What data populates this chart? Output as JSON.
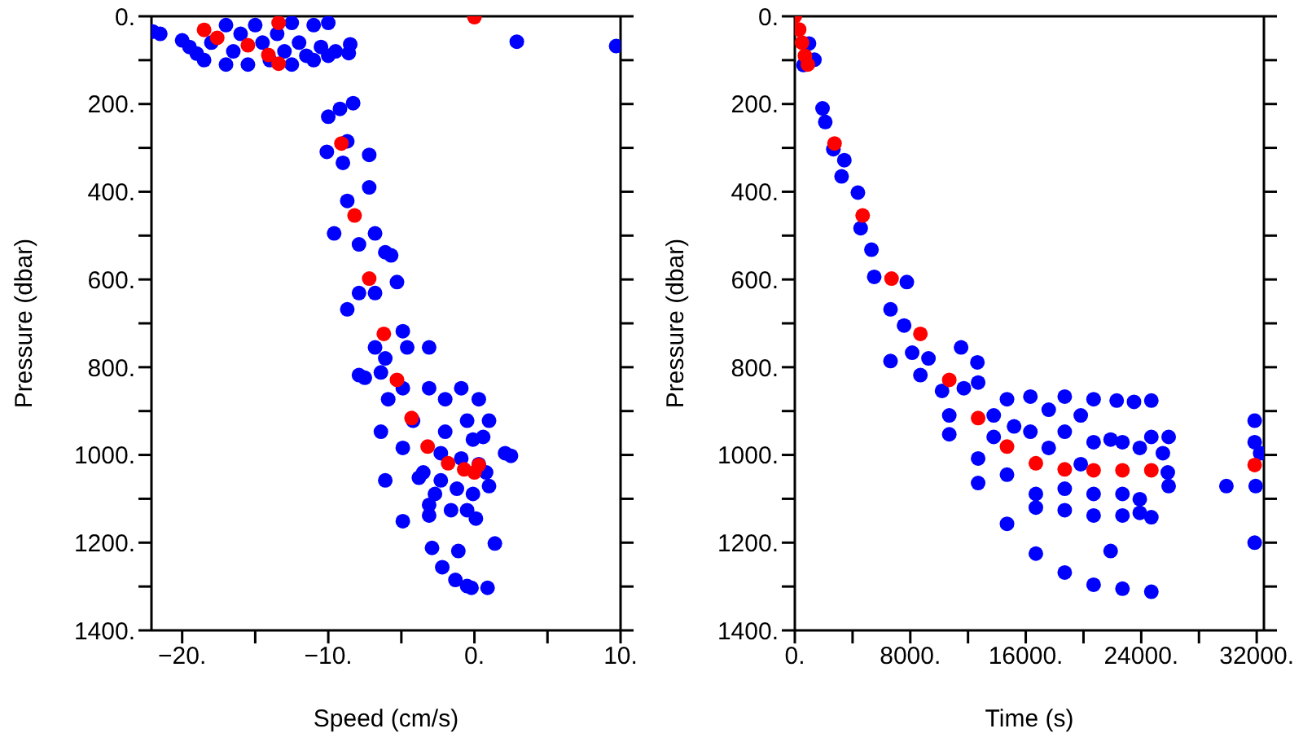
{
  "chart_data": [
    {
      "type": "scatter",
      "xlabel": "Speed (cm/s)",
      "ylabel": "Pressure (dbar)",
      "marker": "circle",
      "xlim": [
        -22.1,
        10
      ],
      "ylim": [
        1400,
        0
      ],
      "xticks": [
        {
          "value": -20,
          "label": "−20."
        },
        {
          "value": -15,
          "label": null
        },
        {
          "value": -10,
          "label": "−10."
        },
        {
          "value": -5,
          "label": null
        },
        {
          "value": 0,
          "label": "0."
        },
        {
          "value": 5,
          "label": null
        },
        {
          "value": 10,
          "label": "10."
        }
      ],
      "yticks": [
        {
          "value": 0,
          "label": "0."
        },
        {
          "value": 100,
          "label": null
        },
        {
          "value": 200,
          "label": "200."
        },
        {
          "value": 300,
          "label": null
        },
        {
          "value": 400,
          "label": "400."
        },
        {
          "value": 500,
          "label": null
        },
        {
          "value": 600,
          "label": "600."
        },
        {
          "value": 700,
          "label": null
        },
        {
          "value": 800,
          "label": "800."
        },
        {
          "value": 900,
          "label": null
        },
        {
          "value": 1000,
          "label": "1000."
        },
        {
          "value": 1100,
          "label": null
        },
        {
          "value": 1200,
          "label": "1200."
        },
        {
          "value": 1300,
          "label": null
        },
        {
          "value": 1400,
          "label": "1400."
        }
      ],
      "series": [
        {
          "color": "#0000ff",
          "x": [
            -22,
            -21.5,
            -20,
            -19.5,
            -19,
            -18.5,
            -18,
            -17,
            -17,
            -16.5,
            -16,
            -15.5,
            -15,
            -14.5,
            -14,
            -13.5,
            -13,
            -12.5,
            -12.5,
            -12,
            -11.5,
            -11,
            -11,
            -10.5,
            -10,
            -10,
            -9.5,
            -8.5,
            -8.6,
            2.9,
            9.7,
            -10,
            -9.2,
            -8.3,
            -10.1,
            -8.7,
            -7.2,
            -9,
            -9.6,
            -8.7,
            -7.2,
            -6.8,
            -7.9,
            -6.1,
            -7.9,
            -6.8,
            -5.7,
            -8.7,
            -5.3,
            -4.9,
            -6.8,
            -6.1,
            -4.6,
            -3.1,
            -7.9,
            -6.4,
            -5.9,
            -4.9,
            -6.4,
            -4.9,
            -3.1,
            -2,
            -0.9,
            0.3,
            -0.5,
            1,
            2.1,
            2.5,
            -0.1,
            -2,
            -3.5,
            -3.8,
            -2.3,
            -1.2,
            -0.1,
            1,
            0.8,
            -2.7,
            -3.1,
            -1.6,
            -0.5,
            0.1,
            -6.1,
            -4.9,
            -3.1,
            -2.9,
            1.4,
            -2.2,
            -1.1,
            -1.3,
            -0.5,
            -0.2,
            0.9,
            -7.5,
            -4.2,
            -2.3,
            -0.9,
            0.6,
            0.3
          ],
          "values": [
            35,
            40,
            55,
            70,
            85,
            100,
            60,
            20,
            110,
            80,
            40,
            110,
            20,
            60,
            100,
            40,
            80,
            15,
            110,
            60,
            90,
            20,
            100,
            70,
            15,
            90,
            80,
            64,
            84,
            58,
            68,
            229,
            211,
            198,
            309,
            285,
            316,
            334,
            495,
            421,
            390,
            495,
            520,
            538,
            631,
            631,
            545,
            668,
            606,
            718,
            755,
            780,
            755,
            755,
            818,
            812,
            873,
            848,
            947,
            984,
            848,
            873,
            848,
            873,
            922,
            922,
            996,
            1002,
            965,
            947,
            1040,
            1052,
            1058,
            1077,
            1089,
            1071,
            1040,
            1089,
            1114,
            1126,
            1126,
            1145,
            1058,
            1151,
            1138,
            1212,
            1202,
            1256,
            1219,
            1285,
            1299,
            1303,
            1303,
            824,
            922,
            996,
            1008,
            959,
            1021
          ]
        },
        {
          "color": "#ff0000",
          "x": [
            -18.5,
            -17.6,
            -15.5,
            -14.1,
            -13.4,
            -13.4,
            0,
            -9.1,
            -8.2,
            -7.2,
            -6.2,
            -5.3,
            -4.3,
            -3.2,
            -1.8,
            -0.7,
            0,
            0.3
          ],
          "values": [
            31,
            49,
            66,
            88,
            108,
            15,
            2,
            290,
            454,
            598,
            724,
            829,
            916,
            981,
            1019,
            1033,
            1040,
            1023
          ]
        }
      ]
    },
    {
      "type": "scatter",
      "xlabel": "Time (s)",
      "ylabel": "Pressure (dbar)",
      "marker": "circle",
      "xlim": [
        0,
        32500
      ],
      "ylim": [
        1400,
        0
      ],
      "xticks": [
        {
          "value": 0,
          "label": "0."
        },
        {
          "value": 4000,
          "label": null
        },
        {
          "value": 8000,
          "label": "8000."
        },
        {
          "value": 12000,
          "label": null
        },
        {
          "value": 16000,
          "label": "16000."
        },
        {
          "value": 20000,
          "label": null
        },
        {
          "value": 24000,
          "label": "24000."
        },
        {
          "value": 28000,
          "label": null
        },
        {
          "value": 32000,
          "label": "32000."
        }
      ],
      "yticks": [
        {
          "value": 0,
          "label": "0."
        },
        {
          "value": 100,
          "label": null
        },
        {
          "value": 200,
          "label": "200."
        },
        {
          "value": 300,
          "label": null
        },
        {
          "value": 400,
          "label": "400."
        },
        {
          "value": 500,
          "label": null
        },
        {
          "value": 600,
          "label": "600."
        },
        {
          "value": 700,
          "label": null
        },
        {
          "value": 800,
          "label": "800."
        },
        {
          "value": 900,
          "label": null
        },
        {
          "value": 1000,
          "label": "1000."
        },
        {
          "value": 1100,
          "label": null
        },
        {
          "value": 1200,
          "label": "1200."
        },
        {
          "value": 1300,
          "label": null
        },
        {
          "value": 1400,
          "label": "1400."
        }
      ],
      "series": [
        {
          "color": "#0000ff",
          "x": [
            980,
            1360,
            600,
            1920,
            2110,
            2670,
            3430,
            3240,
            4370,
            4560,
            5310,
            5500,
            6630,
            6630,
            7760,
            7570,
            8130,
            9260,
            10200,
            11520,
            12650,
            8700,
            10700,
            10700,
            11710,
            12700,
            12700,
            12700,
            13780,
            13780,
            14700,
            14700,
            14700,
            15190,
            16320,
            16320,
            16700,
            16700,
            16700,
            17590,
            17590,
            18700,
            18700,
            18700,
            18700,
            18700,
            19810,
            19810,
            20700,
            20700,
            20700,
            20700,
            20700,
            21880,
            21880,
            22300,
            22700,
            22700,
            22700,
            22700,
            23500,
            23900,
            23900,
            23900,
            24700,
            24700,
            24700,
            24700,
            25500,
            25840,
            25900,
            25900,
            29900,
            31860,
            31860,
            31860,
            31930,
            32240
          ],
          "values": [
            62,
            99,
            111,
            210,
            241,
            303,
            328,
            365,
            402,
            483,
            532,
            594,
            668,
            786,
            606,
            705,
            767,
            780,
            854,
            755,
            789,
            818,
            910,
            953,
            848,
            835,
            1008,
            1064,
            910,
            959,
            873,
            1045,
            1157,
            935,
            867,
            947,
            1089,
            1120,
            1225,
            897,
            984,
            867,
            947,
            1077,
            1126,
            1268,
            910,
            1021,
            873,
            971,
            1089,
            1138,
            1296,
            965,
            1219,
            876,
            971,
            1089,
            1138,
            1305,
            879,
            984,
            1101,
            1132,
            876,
            959,
            1142,
            1312,
            996,
            1040,
            959,
            1071,
            1071,
            922,
            971,
            1200,
            1071,
            996
          ]
        },
        {
          "color": "#ff0000",
          "x": [
            0,
            300,
            500,
            700,
            900,
            2750,
            4700,
            6700,
            8700,
            10700,
            12700,
            14700,
            16700,
            18700,
            20700,
            22700,
            24700,
            31860
          ],
          "values": [
            0,
            30,
            60,
            90,
            110,
            290,
            454,
            598,
            724,
            829,
            916,
            981,
            1019,
            1033,
            1035,
            1035,
            1035,
            1023
          ]
        }
      ]
    }
  ]
}
